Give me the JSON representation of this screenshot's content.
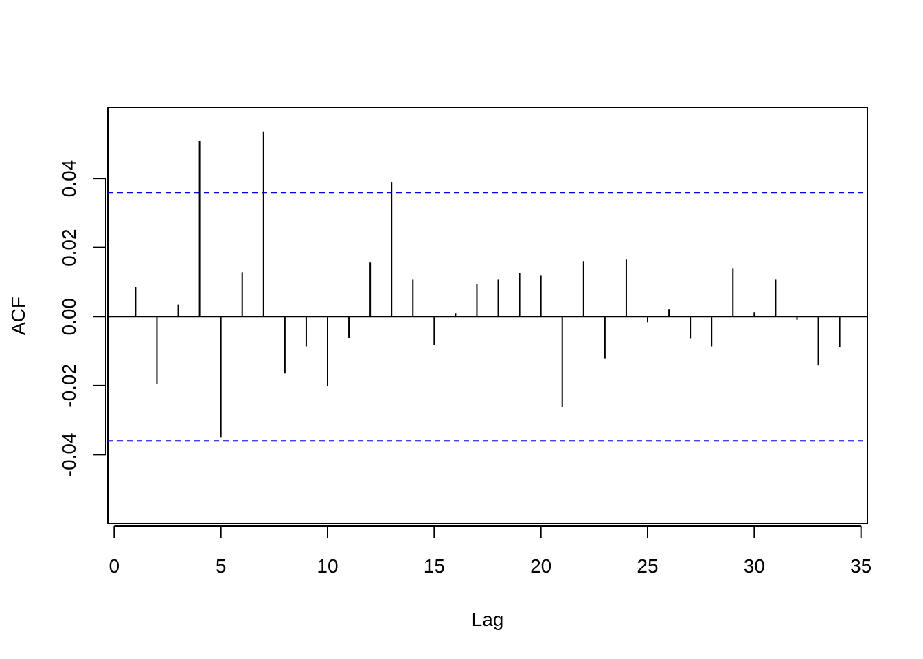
{
  "chart_data": {
    "type": "bar",
    "title": "",
    "xlabel": "Lag",
    "ylabel": "ACF",
    "xlim": [
      -0.3,
      35.3
    ],
    "ylim": [
      -0.06,
      0.0605
    ],
    "x_ticks": [
      0,
      5,
      10,
      15,
      20,
      25,
      30,
      35
    ],
    "y_ticks": [
      -0.04,
      -0.02,
      0.0,
      0.02,
      0.04
    ],
    "y_tick_labels": [
      "-0.04",
      "-0.02",
      "0.00",
      "0.02",
      "0.04"
    ],
    "conf_limit": 0.036,
    "conf_color": "#0000ff",
    "zero_line": true,
    "grid": false,
    "lags": [
      1,
      2,
      3,
      4,
      5,
      6,
      7,
      8,
      9,
      10,
      11,
      12,
      13,
      14,
      15,
      16,
      17,
      18,
      19,
      20,
      21,
      22,
      23,
      24,
      25,
      26,
      27,
      28,
      29,
      30,
      31,
      32,
      33,
      34
    ],
    "values": [
      0.0086,
      -0.0196,
      0.0035,
      0.0508,
      -0.035,
      0.0129,
      0.0536,
      -0.0165,
      -0.0086,
      -0.0202,
      -0.0061,
      0.0157,
      0.039,
      0.0107,
      -0.0082,
      0.001,
      0.0096,
      0.0107,
      0.0127,
      0.0119,
      -0.0262,
      0.0161,
      -0.0122,
      0.0165,
      -0.0016,
      0.0022,
      -0.0064,
      -0.0086,
      0.0139,
      0.0012,
      0.0107,
      -0.0009,
      -0.0141,
      -0.0088
    ]
  }
}
